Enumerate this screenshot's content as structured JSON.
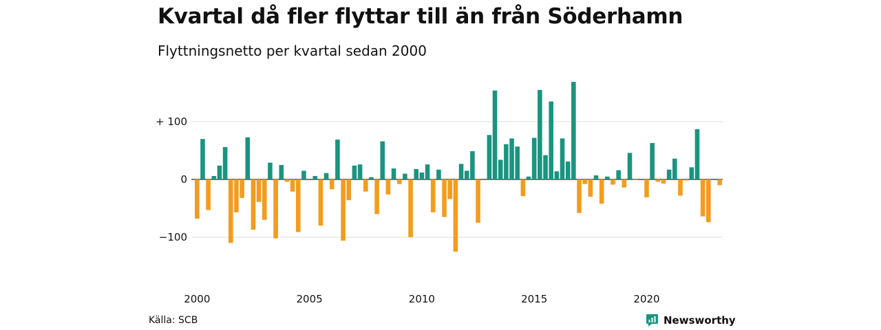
{
  "header": {
    "title": "Kvartal då fler flyttar till än från Söderhamn",
    "subtitle": "Flyttningsnetto per kvartal sedan 2000"
  },
  "footer": {
    "source": "Källa: SCB",
    "brand": "Newsworthy"
  },
  "colors": {
    "positive": "#1a9480",
    "negative": "#f39c1d",
    "grid": "#dddddd",
    "text": "#111111",
    "brand": "#1a9480"
  },
  "chart_data": {
    "type": "bar",
    "x_start": "2000 Q1",
    "frequency": "quarterly",
    "ylim": [
      -160,
      200
    ],
    "yticks": [
      {
        "value": 100,
        "label": "+ 100"
      },
      {
        "value": 0,
        "label": "0"
      },
      {
        "value": -100,
        "label": "−100"
      }
    ],
    "xticks": [
      {
        "quarter": "2000 Q1",
        "label": "2000"
      },
      {
        "quarter": "2005 Q1",
        "label": "2005"
      },
      {
        "quarter": "2010 Q1",
        "label": "2010"
      },
      {
        "quarter": "2015 Q1",
        "label": "2015"
      },
      {
        "quarter": "2020 Q1",
        "label": "2020"
      }
    ],
    "grid": true,
    "values": [
      -68,
      70,
      -53,
      6,
      24,
      56,
      -110,
      -57,
      -32,
      73,
      -87,
      -39,
      -70,
      29,
      -102,
      25,
      -4,
      -21,
      -91,
      15,
      0,
      6,
      -80,
      11,
      -17,
      69,
      -106,
      -36,
      24,
      26,
      -21,
      4,
      -60,
      66,
      -26,
      19,
      -8,
      10,
      -100,
      18,
      12,
      26,
      -57,
      17,
      -65,
      -34,
      -125,
      27,
      15,
      49,
      -75,
      0,
      77,
      154,
      34,
      61,
      71,
      57,
      -29,
      5,
      72,
      155,
      42,
      135,
      14,
      71,
      31,
      169,
      -58,
      -8,
      -30,
      7,
      -42,
      5,
      -9,
      16,
      -14,
      46,
      -1,
      0,
      -31,
      63,
      -4,
      -7,
      17,
      36,
      -28,
      -2,
      21,
      87,
      -64,
      -74,
      1,
      -10
    ]
  }
}
